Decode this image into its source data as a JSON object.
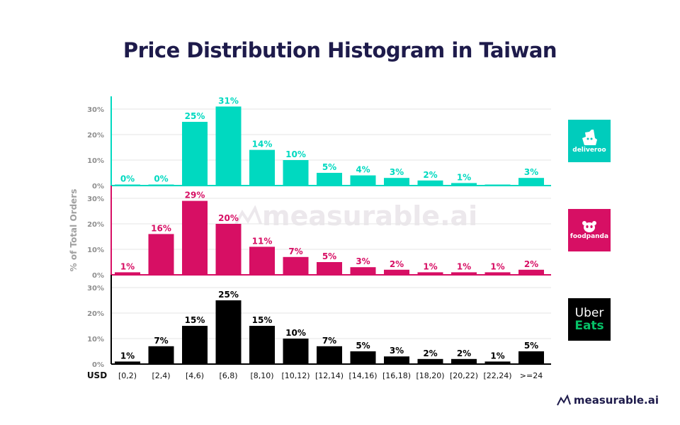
{
  "title": "Price Distribution Histogram in Taiwan",
  "watermark_text": "measurable.ai",
  "footer_brand": "measurable.ai",
  "brands": {
    "deliveroo": "deliveroo",
    "foodpanda": "foodpanda",
    "ubereats_line1": "Uber",
    "ubereats_line2": "Eats"
  },
  "chart_data": {
    "type": "bar",
    "ylabel": "% of Total Orders",
    "x_unit_label": "USD",
    "categories": [
      "[0,2)",
      "[2,4)",
      "[4,6)",
      "[6,8)",
      "[8,10)",
      "[10,12)",
      "[12,14)",
      "[14,16)",
      "[16,18)",
      "[18,20)",
      "[20,22)",
      "[22,24)",
      ">=24"
    ],
    "yticks": [
      "0%",
      "10%",
      "20%",
      "30%"
    ],
    "ylim": [
      0,
      33
    ],
    "series": [
      {
        "name": "deliveroo",
        "color": "#00d9c0",
        "values": [
          0,
          0,
          25,
          31,
          14,
          10,
          5,
          4,
          3,
          2,
          1,
          0,
          3
        ],
        "labels": [
          "0%",
          "0%",
          "25%",
          "31%",
          "14%",
          "10%",
          "5%",
          "4%",
          "3%",
          "2%",
          "1%",
          "",
          "3%"
        ]
      },
      {
        "name": "foodpanda",
        "color": "#d70f64",
        "values": [
          1,
          16,
          29,
          20,
          11,
          7,
          5,
          3,
          2,
          1,
          1,
          1,
          2
        ],
        "labels": [
          "1%",
          "16%",
          "29%",
          "20%",
          "11%",
          "7%",
          "5%",
          "3%",
          "2%",
          "1%",
          "1%",
          "1%",
          "2%"
        ]
      },
      {
        "name": "Uber Eats",
        "color": "#000000",
        "values": [
          1,
          7,
          15,
          25,
          15,
          10,
          7,
          5,
          3,
          2,
          2,
          1,
          5
        ],
        "labels": [
          "1%",
          "7%",
          "15%",
          "25%",
          "15%",
          "10%",
          "7%",
          "5%",
          "3%",
          "2%",
          "2%",
          "1%",
          "5%"
        ]
      }
    ]
  }
}
